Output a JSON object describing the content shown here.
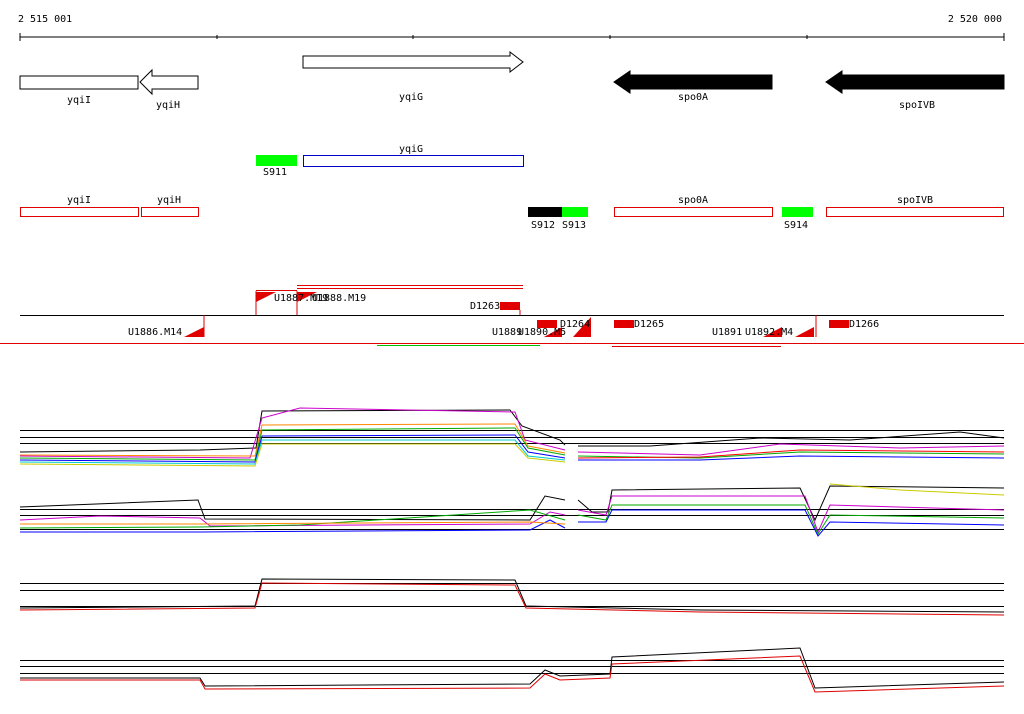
{
  "ruler": {
    "start": "2 515 001",
    "end": "2 520 000"
  },
  "genes": [
    "yqiI",
    "yqiH",
    "yqiG",
    "spo0A",
    "spoIVB"
  ],
  "features": [
    "S911",
    "yqiG"
  ],
  "annotations": [
    "yqiI",
    "yqiH",
    "spo0A",
    "spoIVB",
    "S912",
    "S913",
    "S914"
  ],
  "probes": [
    "U1887.M19",
    "U1888.M19",
    "D1263",
    "U1886.M14",
    "U1889",
    "U1890.M5",
    "D1264",
    "D1265",
    "U1891",
    "U1892.M4",
    "D1266"
  ]
}
